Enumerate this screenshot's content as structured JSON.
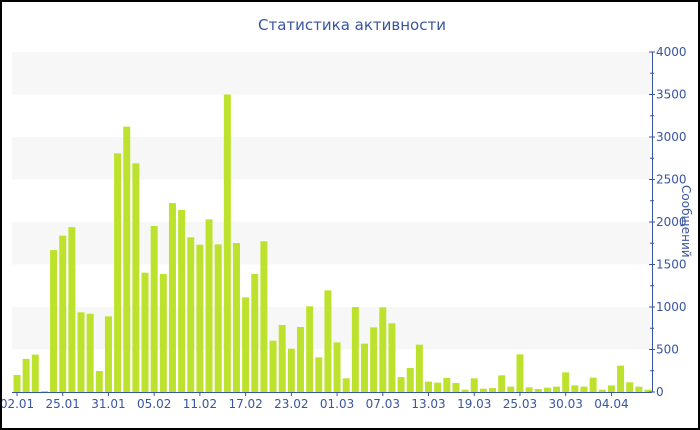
{
  "chart_data": {
    "type": "bar",
    "title": "Статистика активности",
    "ylabel": "Сообщений",
    "xlabel": "",
    "ylim": [
      0,
      4000
    ],
    "yticks": [
      0,
      500,
      1000,
      1500,
      2000,
      2500,
      3000,
      3500,
      4000
    ],
    "y_axis_position": "right",
    "grid": "alternating horizontal bands every 500",
    "bar_color": "#bde22e",
    "axis_color": "#3a55a0",
    "band_color": "#f7f7f7",
    "values": [
      200,
      390,
      440,
      10,
      1670,
      1840,
      1940,
      937,
      921,
      247,
      890,
      2808,
      3122,
      2690,
      1404,
      1953,
      1388,
      2223,
      2141,
      1820,
      1733,
      2031,
      1737,
      3500,
      1753,
      1114,
      1388,
      1773,
      604,
      788,
      510,
      765,
      1008,
      408,
      1196,
      584,
      161,
      1000,
      569,
      761,
      996,
      808,
      176,
      282,
      557,
      122,
      110,
      165,
      106,
      27,
      161,
      39,
      47,
      196,
      63,
      443,
      55,
      35,
      51,
      63,
      231,
      78,
      63,
      169,
      27,
      78,
      310,
      114,
      63,
      27
    ],
    "xticks": [
      {
        "bar_index": 0,
        "label": "02.01"
      },
      {
        "bar_index": 5,
        "label": "25.01"
      },
      {
        "bar_index": 10,
        "label": "31.01"
      },
      {
        "bar_index": 15,
        "label": "05.02"
      },
      {
        "bar_index": 20,
        "label": "11.02"
      },
      {
        "bar_index": 25,
        "label": "17.02"
      },
      {
        "bar_index": 30,
        "label": "23.02"
      },
      {
        "bar_index": 35,
        "label": "01.03"
      },
      {
        "bar_index": 40,
        "label": "07.03"
      },
      {
        "bar_index": 45,
        "label": "13.03"
      },
      {
        "bar_index": 50,
        "label": "19.03"
      },
      {
        "bar_index": 55,
        "label": "25.03"
      },
      {
        "bar_index": 60,
        "label": "30.03"
      },
      {
        "bar_index": 65,
        "label": "04.04"
      }
    ]
  }
}
